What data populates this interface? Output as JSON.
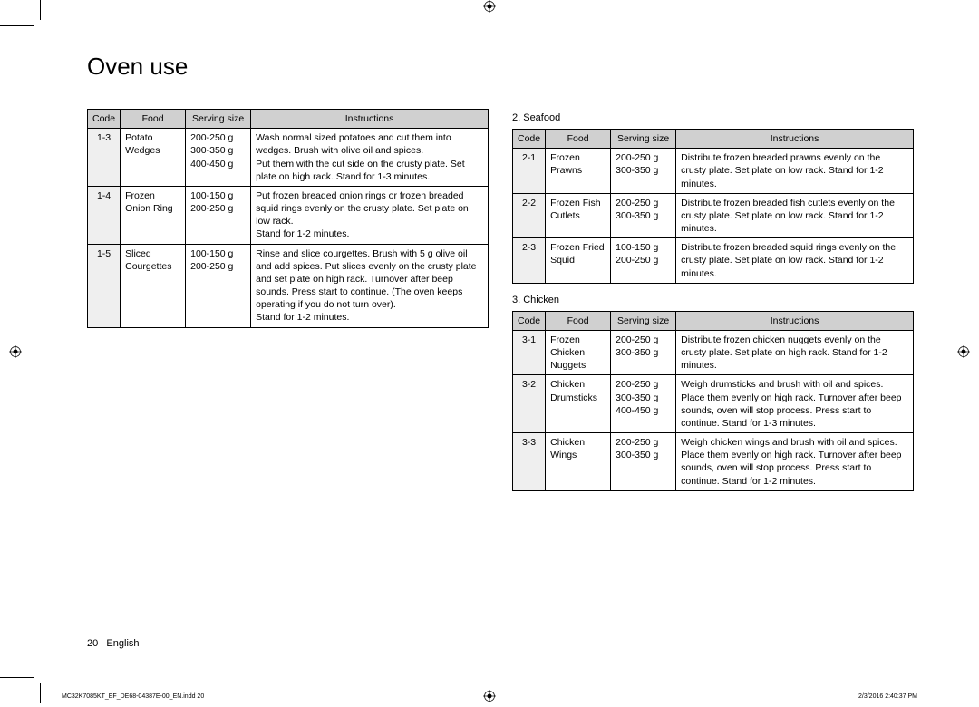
{
  "title": "Oven use",
  "footer_page": "20",
  "footer_lang": "English",
  "smallprint_left": "MC32K7085KT_EF_DE68-04387E-00_EN.indd   20",
  "smallprint_right": "2/3/2016   2:40:37 PM",
  "headers": {
    "code": "Code",
    "food": "Food",
    "serv": "Serving size",
    "inst": "Instructions"
  },
  "section2_label": "2. Seafood",
  "section3_label": "3. Chicken",
  "t1": {
    "r0": {
      "code": "1-3",
      "food": "Potato Wedges",
      "serv": "200-250 g\n300-350 g\n400-450 g",
      "inst": "Wash normal sized potatoes and cut them into wedges. Brush with olive oil and spices.\nPut them with the cut side on the crusty plate. Set plate on high rack. Stand for 1-3 minutes."
    },
    "r1": {
      "code": "1-4",
      "food": "Frozen Onion Ring",
      "serv": "100-150 g\n200-250 g",
      "inst": "Put frozen breaded onion rings or frozen breaded squid rings evenly on the crusty plate. Set plate on low rack.\nStand for 1-2 minutes."
    },
    "r2": {
      "code": "1-5",
      "food": "Sliced Courgettes",
      "serv": "100-150 g\n200-250 g",
      "inst": "Rinse and slice courgettes. Brush with 5 g olive oil and add spices. Put slices evenly on the crusty plate and set plate on high rack. Turnover after beep sounds. Press start to continue. (The oven keeps operating if you do not turn over).\nStand for 1-2 minutes."
    }
  },
  "t2": {
    "r0": {
      "code": "2-1",
      "food": "Frozen Prawns",
      "serv": "200-250 g\n300-350 g",
      "inst": "Distribute frozen breaded prawns evenly on the crusty plate. Set plate on low rack. Stand for 1-2 minutes."
    },
    "r1": {
      "code": "2-2",
      "food": "Frozen Fish Cutlets",
      "serv": "200-250 g\n300-350 g",
      "inst": "Distribute frozen breaded fish cutlets evenly on the crusty plate. Set plate on low rack. Stand for 1-2 minutes."
    },
    "r2": {
      "code": "2-3",
      "food": "Frozen Fried Squid",
      "serv": "100-150 g\n200-250 g",
      "inst": "Distribute frozen breaded squid rings evenly on the crusty plate. Set plate on low rack. Stand for 1-2 minutes."
    }
  },
  "t3": {
    "r0": {
      "code": "3-1",
      "food": "Frozen Chicken Nuggets",
      "serv": "200-250 g\n300-350 g",
      "inst": "Distribute frozen chicken nuggets evenly on the crusty plate. Set plate on high rack. Stand for 1-2 minutes."
    },
    "r1": {
      "code": "3-2",
      "food": "Chicken Drumsticks",
      "serv": "200-250 g\n300-350 g\n400-450 g",
      "inst": "Weigh drumsticks and brush with oil and spices. Place them evenly on high rack. Turnover after beep sounds, oven will stop process. Press start to continue. Stand for 1-3 minutes."
    },
    "r2": {
      "code": "3-3",
      "food": "Chicken Wings",
      "serv": "200-250 g\n300-350 g",
      "inst": "Weigh chicken wings and brush with oil and spices. Place them evenly on high rack. Turnover after beep sounds, oven will stop process. Press start to continue. Stand for 1-2 minutes."
    }
  }
}
